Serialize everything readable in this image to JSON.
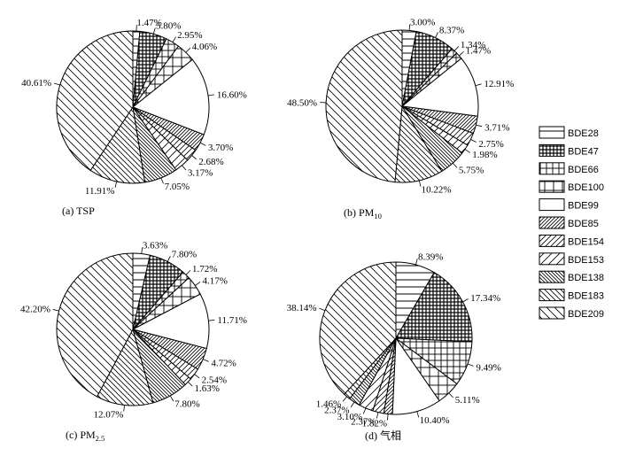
{
  "chart_data": [
    {
      "type": "pie",
      "caption": "(a)  TSP",
      "categories": [
        "BDE28",
        "BDE47",
        "BDE66",
        "BDE100",
        "BDE99",
        "BDE85",
        "BDE154",
        "BDE153",
        "BDE138",
        "BDE183",
        "BDE209"
      ],
      "values": [
        1.47,
        5.8,
        2.95,
        4.06,
        16.6,
        3.7,
        2.68,
        3.17,
        7.05,
        11.91,
        40.61
      ],
      "labels": [
        "1.47%",
        "5.80%",
        "2.95%",
        "4.06%",
        "16.60%",
        "3.70%",
        "2.68%",
        "3.17%",
        "7.05%",
        "11.91%",
        "40.61%"
      ]
    },
    {
      "type": "pie",
      "caption": "(b)  PM",
      "caption_sub": "10",
      "categories": [
        "BDE28",
        "BDE47",
        "BDE66",
        "BDE100",
        "BDE99",
        "BDE85",
        "BDE154",
        "BDE153",
        "BDE138",
        "BDE183",
        "BDE209"
      ],
      "values": [
        3.0,
        8.37,
        1.34,
        1.47,
        12.91,
        3.71,
        2.75,
        1.98,
        5.75,
        10.22,
        48.5
      ],
      "labels": [
        "3.00%",
        "8.37%",
        "1.34%",
        "1.47%",
        "12.91%",
        "3.71%",
        "2.75%",
        "1.98%",
        "5.75%",
        "10.22%",
        "48.50%"
      ]
    },
    {
      "type": "pie",
      "caption": "(c)  PM",
      "caption_sub": "2.5",
      "categories": [
        "BDE28",
        "BDE47",
        "BDE66",
        "BDE100",
        "BDE99",
        "BDE85",
        "BDE154",
        "BDE153",
        "BDE138",
        "BDE183",
        "BDE209"
      ],
      "values": [
        3.63,
        7.8,
        1.72,
        4.17,
        11.71,
        4.72,
        2.54,
        1.63,
        7.8,
        12.07,
        42.2
      ],
      "labels": [
        "3.63%",
        "7.80%",
        "1.72%",
        "4.17%",
        "11.71%",
        "4.72%",
        "2.54%",
        "1.63%",
        "7.80%",
        "12.07%",
        "42.20%"
      ]
    },
    {
      "type": "pie",
      "caption": "(d)  气相",
      "categories": [
        "BDE28",
        "BDE47",
        "BDE66",
        "BDE100",
        "BDE99",
        "BDE85",
        "BDE154",
        "BDE153",
        "BDE138",
        "BDE183",
        "BDE209"
      ],
      "values": [
        8.39,
        17.34,
        9.49,
        5.11,
        10.4,
        1.82,
        2.37,
        3.1,
        2.37,
        1.46,
        38.14
      ],
      "labels": [
        "8.39%",
        "17.34%",
        "9.49%",
        "5.11%",
        "10.40%",
        "1.82%",
        "2.37%",
        "3.10%",
        "2.37%",
        "1.46%",
        "38.14%"
      ]
    }
  ],
  "legend": {
    "position": "right",
    "items": [
      "BDE28",
      "BDE47",
      "BDE66",
      "BDE100",
      "BDE99",
      "BDE85",
      "BDE154",
      "BDE153",
      "BDE138",
      "BDE183",
      "BDE209"
    ],
    "patterns": [
      "horiz",
      "crosshatch-dense",
      "grid",
      "grid-vertical",
      "blank",
      "diag-up-dense",
      "diag-up",
      "diag-up-sparse",
      "diag-down-dense",
      "diag-down",
      "diag-down-sparse"
    ]
  }
}
